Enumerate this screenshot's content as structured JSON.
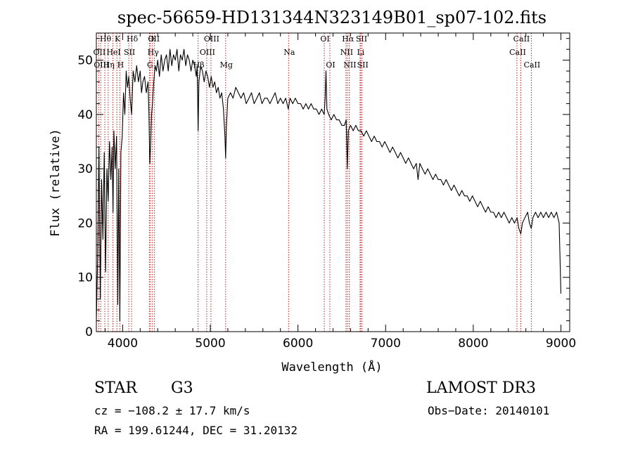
{
  "chart_data": {
    "type": "line",
    "title": "spec-56659-HD131344N323149B01_sp07-102.fits",
    "xlabel": "Wavelength (Å)",
    "ylabel": "Flux (relative)",
    "xlim": [
      3700,
      9100
    ],
    "ylim": [
      0,
      55
    ],
    "xticks": [
      4000,
      5000,
      6000,
      7000,
      8000,
      9000
    ],
    "yticks": [
      0,
      10,
      20,
      30,
      40,
      50
    ],
    "grid": false,
    "series": [
      {
        "name": "spectrum",
        "points": [
          [
            3700,
            2
          ],
          [
            3715,
            14
          ],
          [
            3730,
            34
          ],
          [
            3745,
            6
          ],
          [
            3760,
            28
          ],
          [
            3775,
            17
          ],
          [
            3790,
            33
          ],
          [
            3805,
            11
          ],
          [
            3820,
            30
          ],
          [
            3835,
            24
          ],
          [
            3850,
            35
          ],
          [
            3865,
            28
          ],
          [
            3880,
            34
          ],
          [
            3890,
            22
          ],
          [
            3900,
            37
          ],
          [
            3915,
            30
          ],
          [
            3930,
            36
          ],
          [
            3945,
            5
          ],
          [
            3955,
            30
          ],
          [
            3968,
            2
          ],
          [
            3980,
            33
          ],
          [
            3995,
            36
          ],
          [
            4010,
            44
          ],
          [
            4025,
            40
          ],
          [
            4040,
            48
          ],
          [
            4055,
            45
          ],
          [
            4070,
            47
          ],
          [
            4085,
            43
          ],
          [
            4102,
            40
          ],
          [
            4120,
            48
          ],
          [
            4140,
            46
          ],
          [
            4160,
            49
          ],
          [
            4180,
            46
          ],
          [
            4200,
            48
          ],
          [
            4215,
            44
          ],
          [
            4230,
            46
          ],
          [
            4250,
            47
          ],
          [
            4270,
            44
          ],
          [
            4290,
            46
          ],
          [
            4300,
            40
          ],
          [
            4310,
            31
          ],
          [
            4320,
            35
          ],
          [
            4330,
            40
          ],
          [
            4340,
            42
          ],
          [
            4355,
            46
          ],
          [
            4370,
            49
          ],
          [
            4385,
            48
          ],
          [
            4400,
            50
          ],
          [
            4420,
            47
          ],
          [
            4440,
            51
          ],
          [
            4460,
            48
          ],
          [
            4480,
            50
          ],
          [
            4500,
            51
          ],
          [
            4520,
            48
          ],
          [
            4540,
            52
          ],
          [
            4560,
            49
          ],
          [
            4580,
            51
          ],
          [
            4600,
            50
          ],
          [
            4620,
            52
          ],
          [
            4640,
            48
          ],
          [
            4660,
            51
          ],
          [
            4680,
            50
          ],
          [
            4700,
            52
          ],
          [
            4720,
            49
          ],
          [
            4740,
            51
          ],
          [
            4760,
            50
          ],
          [
            4780,
            48
          ],
          [
            4800,
            50
          ],
          [
            4820,
            49
          ],
          [
            4840,
            47
          ],
          [
            4850,
            49
          ],
          [
            4861,
            37
          ],
          [
            4870,
            46
          ],
          [
            4890,
            49
          ],
          [
            4910,
            48
          ],
          [
            4930,
            46
          ],
          [
            4950,
            48
          ],
          [
            4970,
            47
          ],
          [
            4990,
            45
          ],
          [
            5010,
            47
          ],
          [
            5030,
            45
          ],
          [
            5050,
            46
          ],
          [
            5070,
            44
          ],
          [
            5090,
            45
          ],
          [
            5110,
            43
          ],
          [
            5130,
            44
          ],
          [
            5150,
            41
          ],
          [
            5167,
            36
          ],
          [
            5175,
            32
          ],
          [
            5184,
            38
          ],
          [
            5200,
            43
          ],
          [
            5230,
            44
          ],
          [
            5260,
            43
          ],
          [
            5290,
            45
          ],
          [
            5320,
            44
          ],
          [
            5350,
            43
          ],
          [
            5380,
            44
          ],
          [
            5410,
            42
          ],
          [
            5440,
            43
          ],
          [
            5470,
            44
          ],
          [
            5500,
            42
          ],
          [
            5530,
            43
          ],
          [
            5560,
            44
          ],
          [
            5590,
            42
          ],
          [
            5620,
            43
          ],
          [
            5650,
            43
          ],
          [
            5680,
            42
          ],
          [
            5710,
            43
          ],
          [
            5740,
            44
          ],
          [
            5770,
            42
          ],
          [
            5800,
            43
          ],
          [
            5830,
            42
          ],
          [
            5860,
            43
          ],
          [
            5890,
            41
          ],
          [
            5910,
            43
          ],
          [
            5940,
            42
          ],
          [
            5970,
            43
          ],
          [
            6000,
            42
          ],
          [
            6030,
            42
          ],
          [
            6060,
            41
          ],
          [
            6090,
            42
          ],
          [
            6120,
            41
          ],
          [
            6150,
            42
          ],
          [
            6180,
            41
          ],
          [
            6210,
            41
          ],
          [
            6240,
            40
          ],
          [
            6270,
            41
          ],
          [
            6300,
            40
          ],
          [
            6310,
            43
          ],
          [
            6320,
            48
          ],
          [
            6330,
            41
          ],
          [
            6350,
            40
          ],
          [
            6380,
            39
          ],
          [
            6410,
            40
          ],
          [
            6440,
            39
          ],
          [
            6470,
            39
          ],
          [
            6500,
            38
          ],
          [
            6530,
            38
          ],
          [
            6550,
            39
          ],
          [
            6563,
            30
          ],
          [
            6575,
            37
          ],
          [
            6600,
            38
          ],
          [
            6630,
            37
          ],
          [
            6660,
            38
          ],
          [
            6690,
            37
          ],
          [
            6720,
            37
          ],
          [
            6750,
            36
          ],
          [
            6780,
            37
          ],
          [
            6810,
            36
          ],
          [
            6840,
            35
          ],
          [
            6870,
            36
          ],
          [
            6900,
            35
          ],
          [
            6930,
            35
          ],
          [
            6960,
            34
          ],
          [
            6990,
            35
          ],
          [
            7020,
            34
          ],
          [
            7050,
            33
          ],
          [
            7080,
            34
          ],
          [
            7110,
            33
          ],
          [
            7140,
            32
          ],
          [
            7170,
            33
          ],
          [
            7200,
            32
          ],
          [
            7230,
            31
          ],
          [
            7260,
            32
          ],
          [
            7290,
            31
          ],
          [
            7320,
            30
          ],
          [
            7350,
            31
          ],
          [
            7370,
            28
          ],
          [
            7390,
            31
          ],
          [
            7420,
            30
          ],
          [
            7450,
            29
          ],
          [
            7480,
            30
          ],
          [
            7510,
            29
          ],
          [
            7540,
            28
          ],
          [
            7570,
            29
          ],
          [
            7600,
            28
          ],
          [
            7630,
            28
          ],
          [
            7660,
            27
          ],
          [
            7690,
            28
          ],
          [
            7720,
            27
          ],
          [
            7750,
            26
          ],
          [
            7780,
            27
          ],
          [
            7810,
            26
          ],
          [
            7840,
            25
          ],
          [
            7870,
            26
          ],
          [
            7900,
            25
          ],
          [
            7930,
            25
          ],
          [
            7960,
            24
          ],
          [
            7990,
            25
          ],
          [
            8020,
            24
          ],
          [
            8050,
            23
          ],
          [
            8080,
            24
          ],
          [
            8110,
            23
          ],
          [
            8140,
            22
          ],
          [
            8170,
            23
          ],
          [
            8200,
            22
          ],
          [
            8230,
            22
          ],
          [
            8260,
            21
          ],
          [
            8290,
            22
          ],
          [
            8320,
            21
          ],
          [
            8350,
            22
          ],
          [
            8380,
            21
          ],
          [
            8410,
            20
          ],
          [
            8440,
            21
          ],
          [
            8470,
            20
          ],
          [
            8500,
            21
          ],
          [
            8520,
            19
          ],
          [
            8542,
            18
          ],
          [
            8560,
            20
          ],
          [
            8590,
            21
          ],
          [
            8620,
            22
          ],
          [
            8640,
            20
          ],
          [
            8662,
            19
          ],
          [
            8680,
            21
          ],
          [
            8710,
            22
          ],
          [
            8740,
            21
          ],
          [
            8770,
            22
          ],
          [
            8800,
            21
          ],
          [
            8830,
            22
          ],
          [
            8860,
            21
          ],
          [
            8890,
            22
          ],
          [
            8920,
            21
          ],
          [
            8950,
            22
          ],
          [
            8980,
            20
          ],
          [
            9000,
            7
          ]
        ]
      }
    ],
    "lines": [
      {
        "label": "Hθ",
        "x": 3797,
        "row": 0,
        "color": "#b22222"
      },
      {
        "label": "OII",
        "x": 3727,
        "row": 1,
        "color": "#b22222"
      },
      {
        "label": "OIII",
        "x": 3750,
        "row": 2,
        "color": "#b22222"
      },
      {
        "label": "Hη",
        "x": 3835,
        "row": 2,
        "color": "#b22222"
      },
      {
        "label": "HeI",
        "x": 3889,
        "row": 1,
        "color": "#b22222"
      },
      {
        "label": "K",
        "x": 3934,
        "row": 0,
        "color": "#b22222"
      },
      {
        "label": "H",
        "x": 3968,
        "row": 2,
        "color": "#b22222"
      },
      {
        "label": "SII",
        "x": 4070,
        "row": 1,
        "color": "#b22222"
      },
      {
        "label": "Hδ",
        "x": 4102,
        "row": 0,
        "color": "#b22222"
      },
      {
        "label": "G",
        "x": 4305,
        "row": 2,
        "color": "#b22222"
      },
      {
        "label": "O",
        "x": 4317,
        "row": 0,
        "color": "#b22222"
      },
      {
        "label": "Hγ",
        "x": 4340,
        "row": 1,
        "color": "#b22222"
      },
      {
        "label": "III",
        "x": 4363,
        "row": 0,
        "color": "#b22222"
      },
      {
        "label": "Hβ",
        "x": 4861,
        "row": 2,
        "color": "#b22222"
      },
      {
        "label": "OIII",
        "x": 4959,
        "row": 1,
        "color": "#b22222"
      },
      {
        "label": "OIII",
        "x": 5007,
        "row": 0,
        "color": "#b22222"
      },
      {
        "label": "Mg",
        "x": 5175,
        "row": 2,
        "color": "#b22222"
      },
      {
        "label": "Na",
        "x": 5893,
        "row": 1,
        "color": "#b22222"
      },
      {
        "label": "OI",
        "x": 6300,
        "row": 0,
        "color": "#b22222"
      },
      {
        "label": "OI",
        "x": 6364,
        "row": 2,
        "color": "#b22222"
      },
      {
        "label": "NII",
        "x": 6548,
        "row": 1,
        "color": "#b22222"
      },
      {
        "label": "Hα",
        "x": 6563,
        "row": 0,
        "color": "#b22222"
      },
      {
        "label": "NII",
        "x": 6584,
        "row": 2,
        "color": "#b22222"
      },
      {
        "label": "Li",
        "x": 6708,
        "row": 1,
        "color": "#b22222"
      },
      {
        "label": "SII",
        "x": 6717,
        "row": 0,
        "color": "#b22222"
      },
      {
        "label": "SII",
        "x": 6731,
        "row": 2,
        "color": "#b22222"
      },
      {
        "label": "CaII",
        "x": 8498,
        "row": 1,
        "color": "#b22222"
      },
      {
        "label": "CaII",
        "x": 8542,
        "row": 0,
        "color": "#b22222"
      },
      {
        "label": "CaII",
        "x": 8662,
        "row": 2,
        "color": "#b22222"
      }
    ]
  },
  "info": {
    "object_class": "STAR",
    "subclass": "G3",
    "survey": "LAMOST DR3",
    "redshift_line": "cz = −108.2 ± 17.7 km/s",
    "obs_date": "Obs−Date: 20140101",
    "coords": "RA = 199.61244, DEC =  31.20132"
  }
}
